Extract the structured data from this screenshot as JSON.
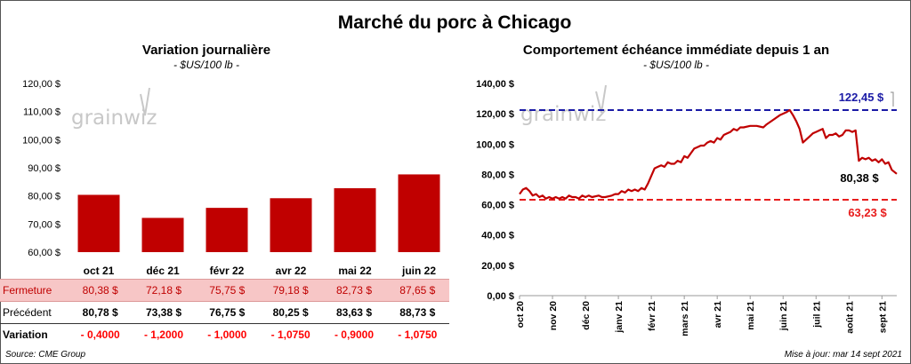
{
  "title": "Marché du porc à Chicago",
  "source": "Source: CME Group",
  "updated": "Mise à jour: mar 14 sept 2021",
  "watermark": "grainwiz",
  "colors": {
    "bar": "#c00000",
    "line": "#c00000",
    "max_line": "#1a1aa6",
    "min_line": "#e81d1d",
    "highlight_row": "#f7c6c6"
  },
  "left_chart": {
    "title": "Variation  journalière",
    "subtitle": "- $US/100 lb -"
  },
  "right_chart": {
    "title": "Comportement  échéance immédiate depuis 1 an",
    "subtitle": "- $US/100 lb -"
  },
  "table": {
    "rows": [
      {
        "label": "Fermeture",
        "values": [
          "80,38  $",
          "72,18  $",
          "75,75  $",
          "79,18  $",
          "82,73  $",
          "87,65  $"
        ]
      },
      {
        "label": "Précédent",
        "values": [
          "80,78  $",
          "73,38  $",
          "76,75  $",
          "80,25  $",
          "83,63  $",
          "88,73  $"
        ]
      },
      {
        "label": "Variation",
        "values": [
          "- 0,4000",
          "- 1,2000",
          "- 1,0000",
          "- 1,0750",
          "- 0,9000",
          "- 1,0750"
        ]
      }
    ]
  },
  "chart_data": [
    {
      "type": "bar",
      "title": "Variation  journalière",
      "subtitle": "- $US/100 lb -",
      "categories": [
        "oct 21",
        "déc 21",
        "févr 22",
        "avr 22",
        "mai 22",
        "juin 22"
      ],
      "values": [
        80.38,
        72.18,
        75.75,
        79.18,
        82.73,
        87.65
      ],
      "ylim": [
        60,
        120
      ],
      "yticks": [
        "60,00 $",
        "70,00 $",
        "80,00 $",
        "90,00 $",
        "100,00 $",
        "110,00 $",
        "120,00 $"
      ]
    },
    {
      "type": "line",
      "title": "Comportement  échéance immédiate depuis 1 an",
      "subtitle": "- $US/100 lb -",
      "ylim": [
        0,
        140
      ],
      "yticks": [
        "0,00 $",
        "20,00 $",
        "40,00 $",
        "60,00 $",
        "80,00 $",
        "100,00 $",
        "120,00 $",
        "140,00 $"
      ],
      "xticks": [
        "oct 20",
        "nov 20",
        "déc 20",
        "janv 21",
        "févr 21",
        "mars 21",
        "avr 21",
        "mai 21",
        "juin 21",
        "juil 21",
        "août 21",
        "sept 21"
      ],
      "xrange": [
        0,
        11.45
      ],
      "points": [
        [
          0,
          67
        ],
        [
          0.1,
          70
        ],
        [
          0.2,
          71
        ],
        [
          0.3,
          69
        ],
        [
          0.4,
          66
        ],
        [
          0.5,
          67
        ],
        [
          0.6,
          65
        ],
        [
          0.7,
          66
        ],
        [
          0.8,
          64
        ],
        [
          0.9,
          65
        ],
        [
          1.0,
          64
        ],
        [
          1.1,
          65
        ],
        [
          1.2,
          64
        ],
        [
          1.3,
          65
        ],
        [
          1.4,
          64
        ],
        [
          1.5,
          66
        ],
        [
          1.6,
          65
        ],
        [
          1.7,
          65
        ],
        [
          1.8,
          64
        ],
        [
          1.9,
          66
        ],
        [
          2.0,
          65
        ],
        [
          2.1,
          66
        ],
        [
          2.2,
          65
        ],
        [
          2.4,
          66
        ],
        [
          2.5,
          65
        ],
        [
          2.6,
          65
        ],
        [
          2.8,
          66
        ],
        [
          2.9,
          67
        ],
        [
          3.0,
          67
        ],
        [
          3.1,
          69
        ],
        [
          3.2,
          68
        ],
        [
          3.3,
          70
        ],
        [
          3.4,
          69
        ],
        [
          3.5,
          70
        ],
        [
          3.6,
          69
        ],
        [
          3.7,
          71
        ],
        [
          3.8,
          70
        ],
        [
          3.9,
          74
        ],
        [
          4.0,
          79
        ],
        [
          4.1,
          84
        ],
        [
          4.2,
          85
        ],
        [
          4.3,
          86
        ],
        [
          4.4,
          85
        ],
        [
          4.5,
          88
        ],
        [
          4.6,
          87
        ],
        [
          4.7,
          87
        ],
        [
          4.8,
          89
        ],
        [
          4.9,
          88
        ],
        [
          5.0,
          92
        ],
        [
          5.1,
          91
        ],
        [
          5.2,
          94
        ],
        [
          5.3,
          97
        ],
        [
          5.4,
          98
        ],
        [
          5.5,
          99
        ],
        [
          5.6,
          99
        ],
        [
          5.7,
          101
        ],
        [
          5.8,
          102
        ],
        [
          5.9,
          101
        ],
        [
          6.0,
          104
        ],
        [
          6.1,
          103
        ],
        [
          6.2,
          106
        ],
        [
          6.3,
          107
        ],
        [
          6.4,
          108
        ],
        [
          6.5,
          110
        ],
        [
          6.6,
          109
        ],
        [
          6.7,
          111
        ],
        [
          6.8,
          111
        ],
        [
          7.0,
          112
        ],
        [
          7.2,
          112
        ],
        [
          7.4,
          111
        ],
        [
          7.5,
          113
        ],
        [
          7.7,
          116
        ],
        [
          7.9,
          119
        ],
        [
          8.1,
          121
        ],
        [
          8.2,
          122.45
        ],
        [
          8.3,
          119
        ],
        [
          8.4,
          115
        ],
        [
          8.5,
          110
        ],
        [
          8.6,
          101
        ],
        [
          8.7,
          103
        ],
        [
          8.8,
          105
        ],
        [
          8.9,
          107
        ],
        [
          9.0,
          108
        ],
        [
          9.1,
          109
        ],
        [
          9.2,
          110
        ],
        [
          9.3,
          104
        ],
        [
          9.4,
          106
        ],
        [
          9.5,
          106
        ],
        [
          9.6,
          107
        ],
        [
          9.7,
          105
        ],
        [
          9.8,
          106
        ],
        [
          9.9,
          109
        ],
        [
          10.0,
          109
        ],
        [
          10.1,
          108
        ],
        [
          10.2,
          109
        ],
        [
          10.3,
          89
        ],
        [
          10.4,
          91
        ],
        [
          10.5,
          90
        ],
        [
          10.6,
          91
        ],
        [
          10.7,
          89
        ],
        [
          10.8,
          90
        ],
        [
          10.9,
          88
        ],
        [
          11.0,
          90
        ],
        [
          11.1,
          87
        ],
        [
          11.2,
          88
        ],
        [
          11.3,
          83
        ],
        [
          11.45,
          80.38
        ]
      ],
      "reference_lines": [
        {
          "name": "max",
          "value": 122.45,
          "label": "122,45 $"
        },
        {
          "name": "min",
          "value": 63.23,
          "label": "63,23 $"
        }
      ],
      "last_label": "80,38 $"
    }
  ]
}
